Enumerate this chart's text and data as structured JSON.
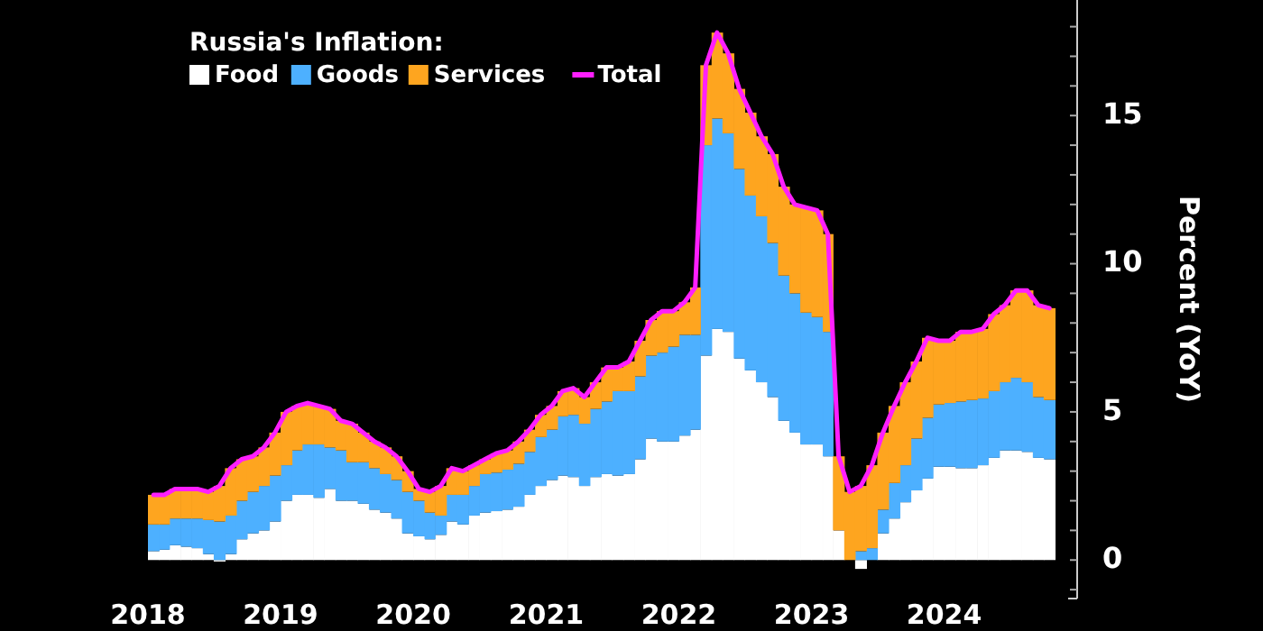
{
  "chart_data": {
    "type": "bar",
    "stacked": true,
    "legend_title": "Russia's Inflation:",
    "ylabel": "Percent (YoY)",
    "x": [
      "2018-01",
      "2018-02",
      "2018-03",
      "2018-04",
      "2018-05",
      "2018-06",
      "2018-07",
      "2018-08",
      "2018-09",
      "2018-10",
      "2018-11",
      "2018-12",
      "2019-01",
      "2019-02",
      "2019-03",
      "2019-04",
      "2019-05",
      "2019-06",
      "2019-07",
      "2019-08",
      "2019-09",
      "2019-10",
      "2019-11",
      "2019-12",
      "2020-01",
      "2020-02",
      "2020-03",
      "2020-04",
      "2020-05",
      "2020-06",
      "2020-07",
      "2020-08",
      "2020-09",
      "2020-10",
      "2020-11",
      "2020-12",
      "2021-01",
      "2021-02",
      "2021-03",
      "2021-04",
      "2021-05",
      "2021-06",
      "2021-07",
      "2021-08",
      "2021-09",
      "2021-10",
      "2021-11",
      "2021-12",
      "2022-01",
      "2022-02",
      "2022-03",
      "2022-04",
      "2022-05",
      "2022-06",
      "2022-07",
      "2022-08",
      "2022-09",
      "2022-10",
      "2022-11",
      "2022-12",
      "2023-01",
      "2023-02",
      "2023-03",
      "2023-04",
      "2023-05",
      "2023-06",
      "2023-07",
      "2023-08",
      "2023-09",
      "2023-10",
      "2023-11",
      "2023-12",
      "2024-01",
      "2024-02",
      "2024-03",
      "2024-04",
      "2024-05",
      "2024-06",
      "2024-07",
      "2024-08",
      "2024-09",
      "2024-10"
    ],
    "series": [
      {
        "name": "Food",
        "color": "#ffffff",
        "values": [
          0.3,
          0.35,
          0.5,
          0.45,
          0.4,
          0.2,
          -0.05,
          0.2,
          0.7,
          0.9,
          1.0,
          1.3,
          2.0,
          2.2,
          2.2,
          2.1,
          2.4,
          2.0,
          2.0,
          1.9,
          1.7,
          1.6,
          1.4,
          0.9,
          0.8,
          0.7,
          0.85,
          1.3,
          1.2,
          1.5,
          1.6,
          1.65,
          1.7,
          1.8,
          2.2,
          2.5,
          2.7,
          2.85,
          2.8,
          2.5,
          2.8,
          2.9,
          2.85,
          2.9,
          3.4,
          4.1,
          4.0,
          4.0,
          4.2,
          4.4,
          6.9,
          7.8,
          7.7,
          6.8,
          6.4,
          6.0,
          5.5,
          4.7,
          4.3,
          3.9,
          3.9,
          3.5,
          1.0,
          0.0,
          -0.3,
          0.0,
          0.9,
          1.4,
          1.95,
          2.35,
          2.75,
          3.15,
          3.15,
          3.1,
          3.1,
          3.2,
          3.45,
          3.7,
          3.7,
          3.65,
          3.45,
          3.4
        ]
      },
      {
        "name": "Goods",
        "color": "#4db0ff",
        "values": [
          0.9,
          0.85,
          0.9,
          0.95,
          1.0,
          1.15,
          1.3,
          1.3,
          1.3,
          1.4,
          1.5,
          1.55,
          1.2,
          1.5,
          1.7,
          1.8,
          1.4,
          1.7,
          1.3,
          1.4,
          1.4,
          1.3,
          1.3,
          1.4,
          1.2,
          0.9,
          0.65,
          0.9,
          1.0,
          1.0,
          1.3,
          1.3,
          1.35,
          1.45,
          1.45,
          1.65,
          1.7,
          2.0,
          2.1,
          2.1,
          2.3,
          2.45,
          2.85,
          2.8,
          2.8,
          2.8,
          3.0,
          3.2,
          3.4,
          3.2,
          7.1,
          7.1,
          6.7,
          6.4,
          5.9,
          5.6,
          5.2,
          4.9,
          4.7,
          4.45,
          4.3,
          4.2,
          0,
          0,
          0.3,
          0.4,
          0.8,
          1.2,
          1.25,
          1.75,
          2.05,
          2.1,
          2.15,
          2.25,
          2.3,
          2.25,
          2.25,
          2.3,
          2.45,
          2.35,
          2.05,
          2.0
        ]
      },
      {
        "name": "Services",
        "color": "#fea51f",
        "values": [
          1.0,
          1.0,
          1.0,
          1.0,
          1.0,
          0.95,
          1.2,
          1.6,
          1.4,
          1.2,
          1.3,
          1.45,
          1.8,
          1.5,
          1.4,
          1.3,
          1.3,
          1.0,
          1.3,
          1.0,
          0.9,
          0.9,
          0.8,
          0.7,
          0.4,
          0.7,
          1.0,
          0.9,
          0.8,
          0.7,
          0.5,
          0.65,
          0.65,
          0.75,
          0.75,
          0.75,
          0.8,
          0.85,
          0.9,
          0.9,
          0.9,
          1.15,
          0.8,
          1.0,
          1.2,
          1.2,
          1.4,
          1.2,
          1.1,
          1.6,
          2.7,
          2.9,
          2.7,
          2.7,
          2.8,
          2.7,
          3.0,
          3.0,
          3.0,
          3.55,
          3.6,
          3.3,
          2.5,
          2.3,
          2.2,
          2.8,
          2.6,
          2.6,
          2.8,
          2.6,
          2.7,
          2.15,
          2.1,
          2.35,
          2.3,
          2.35,
          2.6,
          2.6,
          2.95,
          3.1,
          3.1,
          3.1
        ]
      },
      {
        "name": "Total",
        "type": "line",
        "color": "#ff1fff",
        "values": [
          2.2,
          2.2,
          2.4,
          2.4,
          2.4,
          2.3,
          2.5,
          3.1,
          3.4,
          3.5,
          3.8,
          4.3,
          5.0,
          5.2,
          5.3,
          5.2,
          5.1,
          4.7,
          4.6,
          4.3,
          4.0,
          3.8,
          3.5,
          3.0,
          2.4,
          2.3,
          2.5,
          3.1,
          3.0,
          3.2,
          3.4,
          3.6,
          3.7,
          4.0,
          4.4,
          4.9,
          5.2,
          5.7,
          5.8,
          5.5,
          6.0,
          6.5,
          6.5,
          6.7,
          7.4,
          8.1,
          8.4,
          8.4,
          8.7,
          9.2,
          16.7,
          17.8,
          17.1,
          15.9,
          15.1,
          14.3,
          13.7,
          12.6,
          12.0,
          11.9,
          11.8,
          11.0,
          3.5,
          2.3,
          2.5,
          3.2,
          4.3,
          5.2,
          6.0,
          6.7,
          7.5,
          7.4,
          7.4,
          7.7,
          7.7,
          7.8,
          8.3,
          8.6,
          9.1,
          9.1,
          8.6,
          8.5
        ]
      }
    ],
    "xlim": [
      "2018-01-01",
      "2025-01-01"
    ],
    "xticks": [
      {
        "value": "2018-01",
        "label": "2018"
      },
      {
        "value": "2019-01",
        "label": "2019"
      },
      {
        "value": "2020-01",
        "label": "2020"
      },
      {
        "value": "2021-01",
        "label": "2021"
      },
      {
        "value": "2022-01",
        "label": "2022"
      },
      {
        "value": "2023-01",
        "label": "2023"
      },
      {
        "value": "2024-01",
        "label": "2024"
      }
    ],
    "ylim": [
      -1.3,
      18.9
    ],
    "yticks": [
      {
        "value": -1,
        "label": null
      },
      0,
      {
        "value": 1,
        "label": null
      },
      {
        "value": 2,
        "label": null
      },
      {
        "value": 3,
        "label": null
      },
      {
        "value": 4,
        "label": null
      },
      5,
      {
        "value": 6,
        "label": null
      },
      {
        "value": 7,
        "label": null
      },
      {
        "value": 8,
        "label": null
      },
      {
        "value": 9,
        "label": null
      },
      10,
      {
        "value": 11,
        "label": null
      },
      {
        "value": 12,
        "label": null
      },
      {
        "value": 13,
        "label": null
      },
      {
        "value": 14,
        "label": null
      },
      15,
      {
        "value": 16,
        "label": null
      },
      {
        "value": 17,
        "label": null
      },
      {
        "value": 18,
        "label": null
      }
    ],
    "legend": "top left",
    "grid": false,
    "tick_labels": true
  }
}
